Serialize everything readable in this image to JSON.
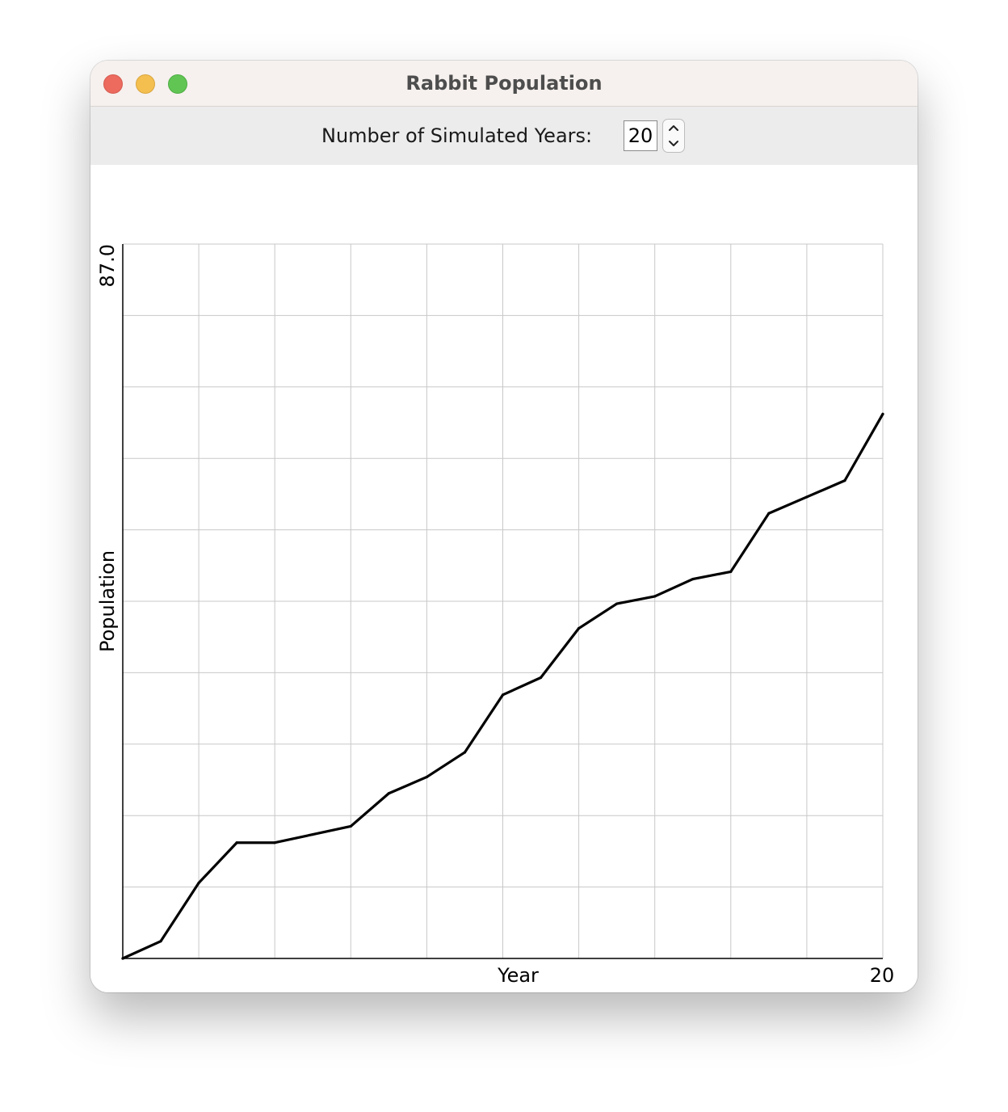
{
  "window": {
    "title": "Rabbit Population"
  },
  "toolbar": {
    "years_label": "Number of Simulated Years:",
    "years_value": "20"
  },
  "chart_data": {
    "type": "line",
    "xlabel": "Year",
    "ylabel": "Population",
    "x_max_label": "20",
    "y_max_label": "87.0",
    "xlim": [
      0,
      20
    ],
    "ylim": [
      0,
      87
    ],
    "grid": true,
    "x_grid_divisions": 10,
    "y_grid_divisions": 10,
    "line_color": "#000000",
    "grid_color": "#c8c8c8",
    "x": [
      0,
      1,
      2,
      3,
      4,
      5,
      6,
      7,
      8,
      9,
      10,
      11,
      12,
      13,
      14,
      15,
      16,
      17,
      18,
      19,
      20
    ],
    "values": [
      0,
      2.1,
      9.2,
      14.1,
      14.1,
      15.1,
      16.1,
      20.1,
      22.1,
      25.1,
      32.1,
      34.2,
      40.2,
      43.2,
      44.1,
      46.2,
      47.1,
      54.2,
      56.2,
      58.2,
      66.3
    ]
  }
}
